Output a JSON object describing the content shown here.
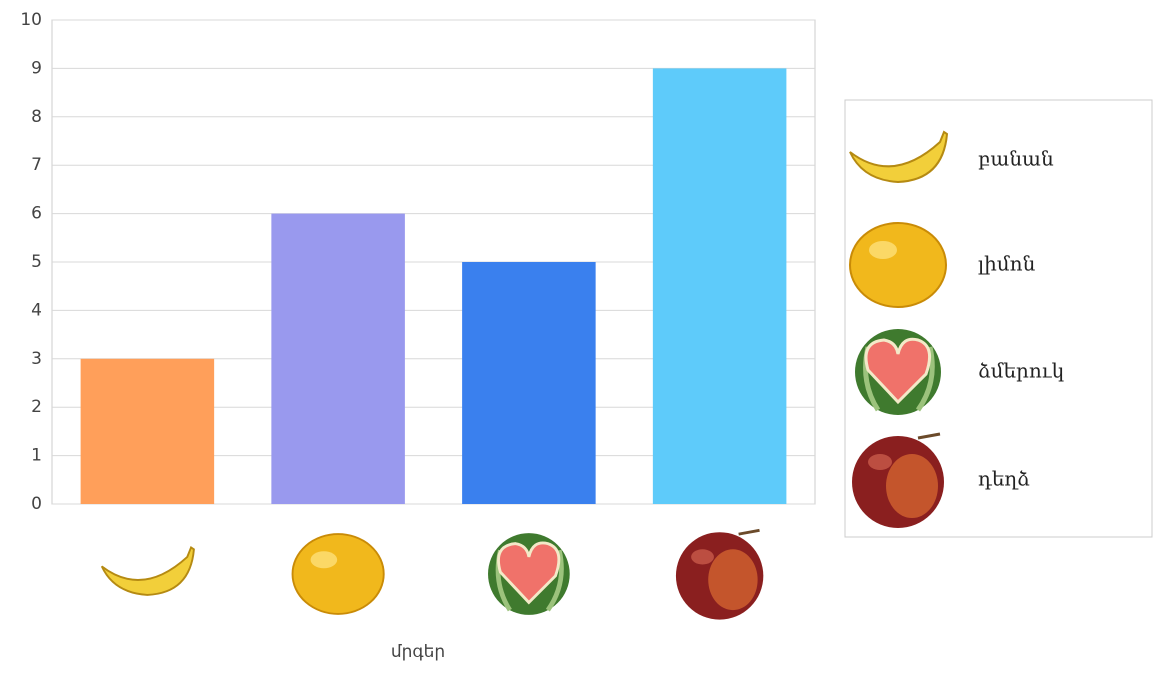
{
  "chart_data": {
    "type": "bar",
    "x_label": "մրգեր",
    "categories": [
      "բանան",
      "լիմոն",
      "ձմերուկ",
      "դեղձ"
    ],
    "values": [
      3,
      6,
      5,
      9
    ],
    "colors": [
      "#ff9f5a",
      "#9999ee",
      "#3a80ee",
      "#5ecbfa"
    ],
    "ylim": [
      0,
      10
    ],
    "yticks": [
      0,
      1,
      2,
      3,
      4,
      5,
      6,
      7,
      8,
      9,
      10
    ],
    "grid": true,
    "legend": "right"
  }
}
